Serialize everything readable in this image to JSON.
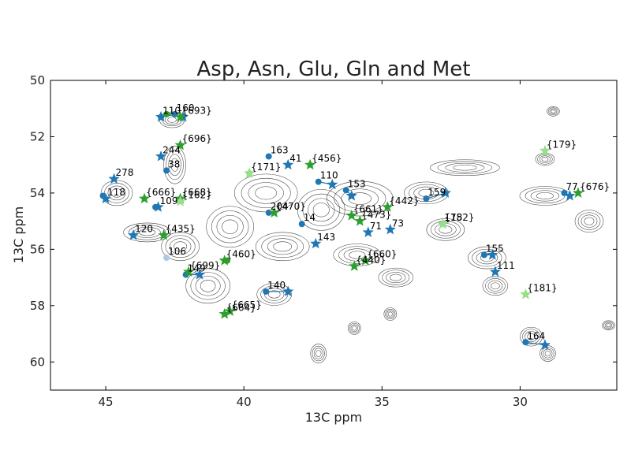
{
  "chart_data": {
    "type": "scatter",
    "title": "Asp, Asn, Glu, Gln and Met",
    "xlabel": "13C ppm",
    "ylabel": "13C ppm",
    "xlim": [
      47,
      26.5
    ],
    "ylim": [
      61,
      50
    ],
    "x_reversed": true,
    "y_reversed": true,
    "x_ticks": [
      45,
      40,
      35,
      30
    ],
    "y_ticks": [
      50,
      52,
      54,
      56,
      58,
      60
    ],
    "grid": false,
    "legend": "none",
    "colors": {
      "blue": "#1f77b4",
      "green": "#2ca02c",
      "lightgreen": "#98df8a",
      "lightblue": "#aec7e8",
      "contour": "#000000"
    },
    "points": [
      {
        "label": "110",
        "x": 43.0,
        "y": 51.3,
        "color": "blue",
        "marker": "circle",
        "pair": [
          43.0,
          51.3
        ]
      },
      {
        "label": "160",
        "x": 42.5,
        "y": 51.2,
        "color": "blue",
        "marker": "circle",
        "pair": [
          42.2,
          51.3
        ]
      },
      {
        "label": "{693}",
        "x": 42.3,
        "y": 51.3,
        "color": "green",
        "marker": "star",
        "pair": [
          42.8,
          51.2
        ]
      },
      {
        "label": "{696}",
        "x": 42.3,
        "y": 52.3,
        "color": "green",
        "marker": "star"
      },
      {
        "label": "244",
        "x": 43.0,
        "y": 52.7,
        "color": "blue",
        "marker": "star"
      },
      {
        "label": "38",
        "x": 42.8,
        "y": 53.2,
        "color": "blue",
        "marker": "circle"
      },
      {
        "label": "278",
        "x": 44.7,
        "y": 53.5,
        "color": "blue",
        "marker": "star"
      },
      {
        "label": "118",
        "x": 45.0,
        "y": 54.2,
        "color": "blue",
        "marker": "star",
        "pair": [
          45.1,
          54.1
        ]
      },
      {
        "label": "{666}",
        "x": 43.6,
        "y": 54.2,
        "color": "green",
        "marker": "star"
      },
      {
        "label": "{668}",
        "x": 42.3,
        "y": 54.2,
        "color": "green",
        "marker": "star"
      },
      {
        "label": "{162}",
        "x": 42.3,
        "y": 54.3,
        "color": "lightgreen",
        "marker": "star"
      },
      {
        "label": "109",
        "x": 43.1,
        "y": 54.5,
        "color": "blue",
        "marker": "star",
        "pair": [
          43.2,
          54.5
        ]
      },
      {
        "label": "120",
        "x": 44.0,
        "y": 55.5,
        "color": "blue",
        "marker": "star"
      },
      {
        "label": "{435}",
        "x": 42.9,
        "y": 55.5,
        "color": "green",
        "marker": "star"
      },
      {
        "label": "106",
        "x": 42.8,
        "y": 56.3,
        "color": "lightblue",
        "marker": "circle"
      },
      {
        "label": "149",
        "x": 42.1,
        "y": 56.9,
        "color": "blue",
        "marker": "circle",
        "pair": [
          41.6,
          56.9
        ]
      },
      {
        "label": "{699}",
        "x": 42.0,
        "y": 56.8,
        "color": "green",
        "marker": "star"
      },
      {
        "label": "{460}",
        "x": 40.7,
        "y": 56.4,
        "color": "green",
        "marker": "star",
        "pair": [
          40.6,
          56.4
        ]
      },
      {
        "label": "{665}",
        "x": 40.5,
        "y": 58.2,
        "color": "green",
        "marker": "star"
      },
      {
        "label": "{664}",
        "x": 40.7,
        "y": 58.3,
        "color": "green",
        "marker": "star"
      },
      {
        "label": "163",
        "x": 39.1,
        "y": 52.7,
        "color": "blue",
        "marker": "circle"
      },
      {
        "label": "41",
        "x": 38.4,
        "y": 53.0,
        "color": "blue",
        "marker": "star"
      },
      {
        "label": "{171}",
        "x": 39.8,
        "y": 53.3,
        "color": "lightgreen",
        "marker": "star",
        "pair": [
          39.8,
          53.3
        ]
      },
      {
        "label": "{456}",
        "x": 37.6,
        "y": 53.0,
        "color": "green",
        "marker": "star"
      },
      {
        "label": "110",
        "x": 37.3,
        "y": 53.6,
        "color": "blue",
        "marker": "circle",
        "pair": [
          36.8,
          53.7
        ]
      },
      {
        "label": "204",
        "x": 39.1,
        "y": 54.7,
        "color": "blue",
        "marker": "circle"
      },
      {
        "label": "{470}",
        "x": 38.9,
        "y": 54.7,
        "color": "green",
        "marker": "star"
      },
      {
        "label": "14",
        "x": 37.9,
        "y": 55.1,
        "color": "blue",
        "marker": "circle"
      },
      {
        "label": "143",
        "x": 37.4,
        "y": 55.8,
        "color": "blue",
        "marker": "star"
      },
      {
        "label": "140",
        "x": 39.2,
        "y": 57.5,
        "color": "blue",
        "marker": "circle",
        "pair": [
          38.4,
          57.5
        ]
      },
      {
        "label": "153",
        "x": 36.3,
        "y": 53.9,
        "color": "blue",
        "marker": "circle",
        "pair": [
          36.1,
          54.1
        ]
      },
      {
        "label": "{661}",
        "x": 36.1,
        "y": 54.8,
        "color": "green",
        "marker": "star"
      },
      {
        "label": "{473}",
        "x": 35.8,
        "y": 55.0,
        "color": "green",
        "marker": "star"
      },
      {
        "label": "71",
        "x": 35.5,
        "y": 55.4,
        "color": "blue",
        "marker": "star"
      },
      {
        "label": "73",
        "x": 34.7,
        "y": 55.3,
        "color": "blue",
        "marker": "star"
      },
      {
        "label": "{442}",
        "x": 34.8,
        "y": 54.5,
        "color": "green",
        "marker": "star"
      },
      {
        "label": "{660}",
        "x": 35.6,
        "y": 56.4,
        "color": "green",
        "marker": "star"
      },
      {
        "label": "{440}",
        "x": 36.0,
        "y": 56.6,
        "color": "green",
        "marker": "star"
      },
      {
        "label": "159",
        "x": 33.4,
        "y": 54.2,
        "color": "blue",
        "marker": "circle",
        "pair": [
          32.7,
          54.0
        ]
      },
      {
        "label": "175",
        "x": 32.8,
        "y": 55.1,
        "color": "blue",
        "marker": "star"
      },
      {
        "label": "{182}",
        "x": 32.8,
        "y": 55.1,
        "color": "lightgreen",
        "marker": "star"
      },
      {
        "label": "155",
        "x": 31.3,
        "y": 56.2,
        "color": "blue",
        "marker": "circle",
        "pair": [
          31.0,
          56.2
        ]
      },
      {
        "label": "111",
        "x": 30.9,
        "y": 56.8,
        "color": "blue",
        "marker": "star"
      },
      {
        "label": "{181}",
        "x": 29.8,
        "y": 57.6,
        "color": "lightgreen",
        "marker": "star"
      },
      {
        "label": "{179}",
        "x": 29.1,
        "y": 52.5,
        "color": "lightgreen",
        "marker": "star"
      },
      {
        "label": "77",
        "x": 28.4,
        "y": 54.0,
        "color": "blue",
        "marker": "circle",
        "pair": [
          28.2,
          54.1
        ]
      },
      {
        "label": "{676}",
        "x": 27.9,
        "y": 54.0,
        "color": "green",
        "marker": "star"
      },
      {
        "label": "164",
        "x": 29.8,
        "y": 59.3,
        "color": "blue",
        "marker": "circle",
        "pair": [
          29.1,
          59.4
        ]
      }
    ]
  }
}
